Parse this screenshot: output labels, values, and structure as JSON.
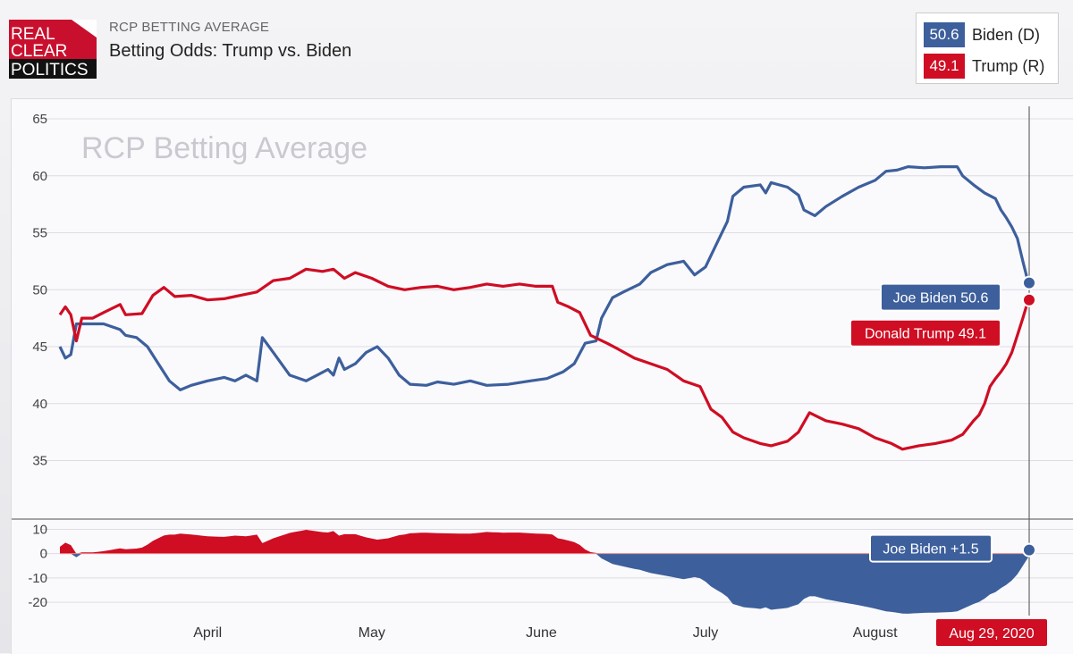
{
  "header": {
    "logo_lines": [
      "REAL",
      "CLEAR",
      "POLITICS"
    ],
    "subtitle": "RCP BETTING AVERAGE",
    "title": "Betting Odds: Trump vs. Biden"
  },
  "legend": {
    "biden": {
      "value": "50.6",
      "name": "Biden (D)",
      "color": "#3d5f9c"
    },
    "trump": {
      "value": "49.1",
      "name": "Trump (R)",
      "color": "#cf0d23"
    }
  },
  "chart_data": [
    {
      "type": "line",
      "title": "RCP Betting Average",
      "ylim": [
        33,
        65
      ],
      "yticks": [
        "35",
        "40",
        "45",
        "50",
        "55",
        "60",
        "65"
      ],
      "xlim": [
        "2020-03-05",
        "2020-08-29"
      ],
      "x_labels": [
        {
          "label": "April",
          "date": "2020-04-01"
        },
        {
          "label": "May",
          "date": "2020-05-01"
        },
        {
          "label": "June",
          "date": "2020-06-01"
        },
        {
          "label": "July",
          "date": "2020-07-01"
        },
        {
          "label": "August",
          "date": "2020-08-01"
        }
      ],
      "grid": true,
      "series": [
        {
          "name": "Joe Biden",
          "color": "#3d5f9c",
          "points": [
            [
              "2020-03-05",
              45.0
            ],
            [
              "2020-03-06",
              44.0
            ],
            [
              "2020-03-07",
              44.3
            ],
            [
              "2020-03-08",
              47.0
            ],
            [
              "2020-03-10",
              47.0
            ],
            [
              "2020-03-13",
              47.0
            ],
            [
              "2020-03-16",
              46.5
            ],
            [
              "2020-03-17",
              46.0
            ],
            [
              "2020-03-19",
              45.8
            ],
            [
              "2020-03-21",
              45.0
            ],
            [
              "2020-03-23",
              43.5
            ],
            [
              "2020-03-25",
              42.0
            ],
            [
              "2020-03-27",
              41.2
            ],
            [
              "2020-03-29",
              41.6
            ],
            [
              "2020-04-01",
              42.0
            ],
            [
              "2020-04-04",
              42.3
            ],
            [
              "2020-04-06",
              42.0
            ],
            [
              "2020-04-08",
              42.5
            ],
            [
              "2020-04-10",
              42.0
            ],
            [
              "2020-04-11",
              45.8
            ],
            [
              "2020-04-13",
              44.5
            ],
            [
              "2020-04-16",
              42.5
            ],
            [
              "2020-04-19",
              42.0
            ],
            [
              "2020-04-21",
              42.5
            ],
            [
              "2020-04-23",
              43.0
            ],
            [
              "2020-04-24",
              42.5
            ],
            [
              "2020-04-25",
              44.0
            ],
            [
              "2020-04-26",
              43.0
            ],
            [
              "2020-04-28",
              43.5
            ],
            [
              "2020-04-30",
              44.5
            ],
            [
              "2020-05-02",
              45.0
            ],
            [
              "2020-05-04",
              44.0
            ],
            [
              "2020-05-06",
              42.5
            ],
            [
              "2020-05-08",
              41.7
            ],
            [
              "2020-05-11",
              41.6
            ],
            [
              "2020-05-13",
              41.9
            ],
            [
              "2020-05-16",
              41.7
            ],
            [
              "2020-05-19",
              42.0
            ],
            [
              "2020-05-22",
              41.6
            ],
            [
              "2020-05-26",
              41.7
            ],
            [
              "2020-05-30",
              42.0
            ],
            [
              "2020-06-02",
              42.2
            ],
            [
              "2020-06-05",
              42.8
            ],
            [
              "2020-06-07",
              43.5
            ],
            [
              "2020-06-09",
              45.3
            ],
            [
              "2020-06-11",
              45.5
            ],
            [
              "2020-06-12",
              47.5
            ],
            [
              "2020-06-14",
              49.3
            ],
            [
              "2020-06-16",
              49.8
            ],
            [
              "2020-06-19",
              50.5
            ],
            [
              "2020-06-21",
              51.5
            ],
            [
              "2020-06-24",
              52.2
            ],
            [
              "2020-06-27",
              52.5
            ],
            [
              "2020-06-29",
              51.3
            ],
            [
              "2020-07-01",
              52.0
            ],
            [
              "2020-07-03",
              54.0
            ],
            [
              "2020-07-05",
              56.0
            ],
            [
              "2020-07-06",
              58.2
            ],
            [
              "2020-07-08",
              59.0
            ],
            [
              "2020-07-11",
              59.2
            ],
            [
              "2020-07-12",
              58.5
            ],
            [
              "2020-07-13",
              59.4
            ],
            [
              "2020-07-16",
              59.0
            ],
            [
              "2020-07-18",
              58.3
            ],
            [
              "2020-07-19",
              57.0
            ],
            [
              "2020-07-21",
              56.5
            ],
            [
              "2020-07-23",
              57.3
            ],
            [
              "2020-07-26",
              58.2
            ],
            [
              "2020-07-29",
              59.0
            ],
            [
              "2020-08-01",
              59.6
            ],
            [
              "2020-08-03",
              60.4
            ],
            [
              "2020-08-05",
              60.5
            ],
            [
              "2020-08-07",
              60.8
            ],
            [
              "2020-08-10",
              60.7
            ],
            [
              "2020-08-13",
              60.8
            ],
            [
              "2020-08-16",
              60.8
            ],
            [
              "2020-08-17",
              60.0
            ],
            [
              "2020-08-19",
              59.2
            ],
            [
              "2020-08-21",
              58.5
            ],
            [
              "2020-08-23",
              58.0
            ],
            [
              "2020-08-24",
              57.0
            ],
            [
              "2020-08-25",
              56.3
            ],
            [
              "2020-08-26",
              55.5
            ],
            [
              "2020-08-27",
              54.5
            ],
            [
              "2020-08-28",
              52.5
            ],
            [
              "2020-08-29",
              50.6
            ]
          ]
        },
        {
          "name": "Donald Trump",
          "color": "#cf0d23",
          "points": [
            [
              "2020-03-05",
              47.8
            ],
            [
              "2020-03-06",
              48.5
            ],
            [
              "2020-03-07",
              47.8
            ],
            [
              "2020-03-08",
              45.5
            ],
            [
              "2020-03-09",
              47.5
            ],
            [
              "2020-03-11",
              47.5
            ],
            [
              "2020-03-13",
              48.0
            ],
            [
              "2020-03-16",
              48.7
            ],
            [
              "2020-03-17",
              47.8
            ],
            [
              "2020-03-20",
              47.9
            ],
            [
              "2020-03-22",
              49.5
            ],
            [
              "2020-03-24",
              50.2
            ],
            [
              "2020-03-26",
              49.4
            ],
            [
              "2020-03-29",
              49.5
            ],
            [
              "2020-04-01",
              49.1
            ],
            [
              "2020-04-04",
              49.2
            ],
            [
              "2020-04-07",
              49.5
            ],
            [
              "2020-04-10",
              49.8
            ],
            [
              "2020-04-13",
              50.8
            ],
            [
              "2020-04-16",
              51.0
            ],
            [
              "2020-04-19",
              51.8
            ],
            [
              "2020-04-22",
              51.6
            ],
            [
              "2020-04-24",
              51.8
            ],
            [
              "2020-04-26",
              51.0
            ],
            [
              "2020-04-28",
              51.5
            ],
            [
              "2020-05-01",
              51.0
            ],
            [
              "2020-05-04",
              50.3
            ],
            [
              "2020-05-07",
              50.0
            ],
            [
              "2020-05-10",
              50.2
            ],
            [
              "2020-05-13",
              50.3
            ],
            [
              "2020-05-16",
              50.0
            ],
            [
              "2020-05-19",
              50.2
            ],
            [
              "2020-05-22",
              50.5
            ],
            [
              "2020-05-25",
              50.3
            ],
            [
              "2020-05-28",
              50.5
            ],
            [
              "2020-05-31",
              50.3
            ],
            [
              "2020-06-03",
              50.3
            ],
            [
              "2020-06-04",
              48.9
            ],
            [
              "2020-06-06",
              48.5
            ],
            [
              "2020-06-08",
              48.0
            ],
            [
              "2020-06-10",
              46.0
            ],
            [
              "2020-06-13",
              45.3
            ],
            [
              "2020-06-15",
              44.8
            ],
            [
              "2020-06-18",
              44.0
            ],
            [
              "2020-06-21",
              43.5
            ],
            [
              "2020-06-24",
              43.0
            ],
            [
              "2020-06-27",
              42.0
            ],
            [
              "2020-06-30",
              41.5
            ],
            [
              "2020-07-02",
              39.5
            ],
            [
              "2020-07-04",
              38.8
            ],
            [
              "2020-07-06",
              37.5
            ],
            [
              "2020-07-08",
              37.0
            ],
            [
              "2020-07-11",
              36.5
            ],
            [
              "2020-07-13",
              36.3
            ],
            [
              "2020-07-16",
              36.7
            ],
            [
              "2020-07-18",
              37.5
            ],
            [
              "2020-07-20",
              39.2
            ],
            [
              "2020-07-23",
              38.5
            ],
            [
              "2020-07-26",
              38.2
            ],
            [
              "2020-07-29",
              37.8
            ],
            [
              "2020-08-01",
              37.0
            ],
            [
              "2020-08-04",
              36.5
            ],
            [
              "2020-08-06",
              36.0
            ],
            [
              "2020-08-09",
              36.3
            ],
            [
              "2020-08-12",
              36.5
            ],
            [
              "2020-08-15",
              36.8
            ],
            [
              "2020-08-17",
              37.3
            ],
            [
              "2020-08-19",
              38.5
            ],
            [
              "2020-08-20",
              39.0
            ],
            [
              "2020-08-21",
              40.0
            ],
            [
              "2020-08-22",
              41.5
            ],
            [
              "2020-08-23",
              42.2
            ],
            [
              "2020-08-24",
              42.8
            ],
            [
              "2020-08-25",
              43.5
            ],
            [
              "2020-08-26",
              44.5
            ],
            [
              "2020-08-27",
              46.0
            ],
            [
              "2020-08-28",
              47.5
            ],
            [
              "2020-08-29",
              49.1
            ]
          ]
        }
      ],
      "end_labels": [
        {
          "text": "Joe Biden 50.6",
          "series": "Joe Biden"
        },
        {
          "text": "Donald Trump 49.1",
          "series": "Donald Trump"
        }
      ]
    },
    {
      "type": "area",
      "ylim": [
        -24,
        12
      ],
      "yticks": [
        "-20",
        "-10",
        "0",
        "10"
      ],
      "grid": true,
      "positive_color": "#cf0d23",
      "negative_color": "#3d5f9c",
      "end_label": "Joe Biden +1.5",
      "end_date": "Aug 29, 2020"
    }
  ]
}
